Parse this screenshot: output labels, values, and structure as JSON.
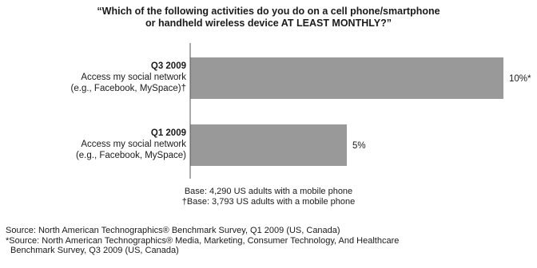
{
  "title": {
    "line1": "“Which of the following activities do you do on a cell phone/smartphone",
    "line2": "or handheld wireless device AT LEAST MONTHLY?”"
  },
  "chart_data": {
    "type": "bar",
    "orientation": "horizontal",
    "title": "“Which of the following activities do you do on a cell phone/smartphone or handheld wireless device AT LEAST MONTHLY?”",
    "categories": [
      {
        "period": "Q3 2009",
        "label_line1": "Access my social network",
        "label_line2": "(e.g., Facebook, MySpace)†"
      },
      {
        "period": "Q1 2009",
        "label_line1": "Access my social network",
        "label_line2": "(e.g., Facebook, MySpace)"
      }
    ],
    "values": [
      10,
      5
    ],
    "data_labels": [
      "10%*",
      "5%"
    ],
    "unit": "%",
    "xlim": [
      0,
      10
    ],
    "grid": false,
    "bar_color": "#999999"
  },
  "base": {
    "line1": "Base: 4,290 US adults with a mobile phone",
    "line2": "†Base: 3,793 US adults with a mobile phone"
  },
  "sources": {
    "line1": "Source: North American Technographics® Benchmark Survey, Q1 2009 (US, Canada)",
    "line2": "*Source: North American Technographics® Media, Marketing, Consumer Technology, And Healthcare",
    "line3": "Benchmark Survey, Q3 2009 (US, Canada)"
  }
}
